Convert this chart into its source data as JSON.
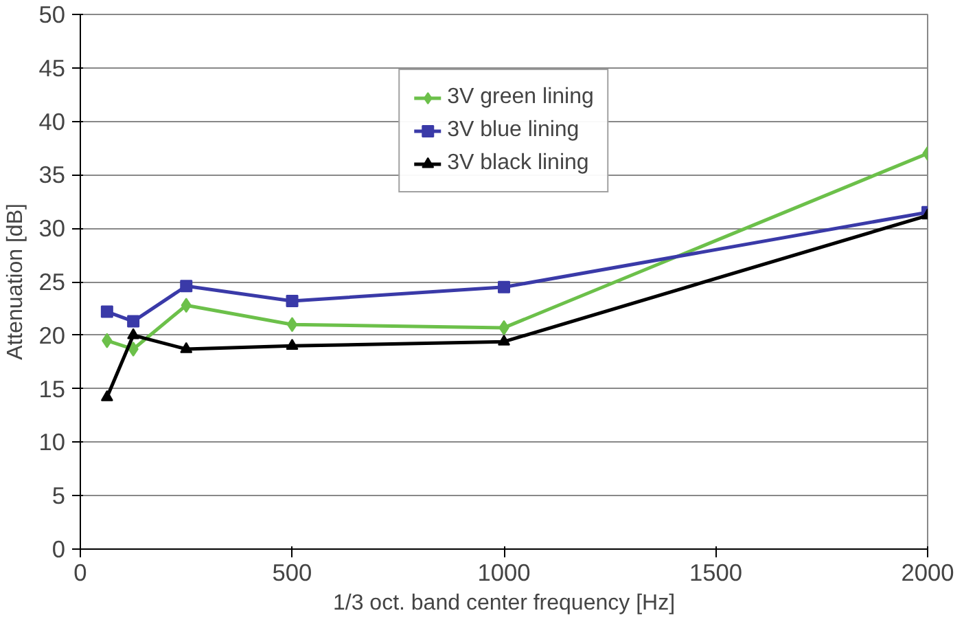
{
  "chart_data": {
    "type": "line",
    "xlabel": "1/3 oct. band center frequency [Hz]",
    "ylabel": "Attenuation [dB]",
    "x": [
      63,
      125,
      250,
      500,
      1000,
      2000
    ],
    "series": [
      {
        "name": "3V green lining",
        "color": "#6cc04a",
        "marker": "diamond",
        "values": [
          19.5,
          18.7,
          22.8,
          21,
          20.7,
          37
        ]
      },
      {
        "name": "3V blue lining",
        "color": "#3a3aa8",
        "marker": "square",
        "values": [
          22.2,
          21.3,
          24.6,
          23.2,
          24.5,
          31.5
        ]
      },
      {
        "name": "3V black lining",
        "color": "#000000",
        "marker": "triangle",
        "values": [
          14.2,
          20,
          18.7,
          19,
          19.4,
          31.2
        ]
      }
    ],
    "xlim": [
      0,
      2000
    ],
    "xticks": [
      0,
      500,
      1000,
      1500,
      2000
    ],
    "ylim": [
      0,
      50
    ],
    "yticks": [
      0,
      5,
      10,
      15,
      20,
      25,
      30,
      35,
      40,
      45,
      50
    ],
    "grid": "y",
    "legend": "top",
    "line_style": "solid"
  }
}
